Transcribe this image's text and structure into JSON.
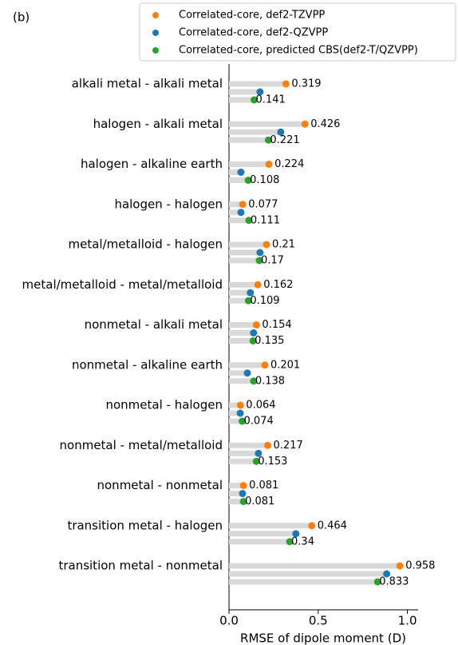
{
  "chart_data": {
    "type": "lollipop",
    "annotation": "(b)",
    "xlabel": "RMSE of  dipole moment (D)",
    "categories": [
      "alkali metal - alkali metal",
      "halogen - alkali metal",
      "halogen - alkaline earth",
      "halogen - halogen",
      "metal/metalloid - halogen",
      "metal/metalloid - metal/metalloid",
      "nonmetal - alkali metal",
      "nonmetal - alkaline earth",
      "nonmetal - halogen",
      "nonmetal - metal/metalloid",
      "nonmetal - nonmetal",
      "transition metal - halogen",
      "transition metal - nonmetal"
    ],
    "series": [
      {
        "name": "Correlated-core, def2-TZVPP",
        "color": "#ff7f0e",
        "data_labels": true,
        "values": [
          0.319,
          0.426,
          0.224,
          0.077,
          0.21,
          0.162,
          0.154,
          0.201,
          0.064,
          0.217,
          0.081,
          0.464,
          0.958
        ]
      },
      {
        "name": "Correlated-core, def2-QZVPP",
        "color": "#1f77b4",
        "data_labels": false,
        "values": [
          0.174,
          0.29,
          0.067,
          0.067,
          0.174,
          0.12,
          0.138,
          0.103,
          0.063,
          0.165,
          0.076,
          0.375,
          0.884
        ]
      },
      {
        "name": "Correlated-core, predicted CBS(def2-T/QZVPP)",
        "color": "#2ca02c",
        "data_labels": true,
        "values": [
          0.141,
          0.221,
          0.108,
          0.111,
          0.17,
          0.109,
          0.135,
          0.138,
          0.074,
          0.153,
          0.081,
          0.34,
          0.833
        ]
      }
    ],
    "xlim": [
      0,
      1.06
    ],
    "xticks": [
      {
        "value": 0,
        "label": "0.0"
      },
      {
        "value": 0.5,
        "label": "0.5"
      },
      {
        "value": 1,
        "label": "1.0"
      }
    ],
    "bar_color": "#d9d9d9"
  }
}
